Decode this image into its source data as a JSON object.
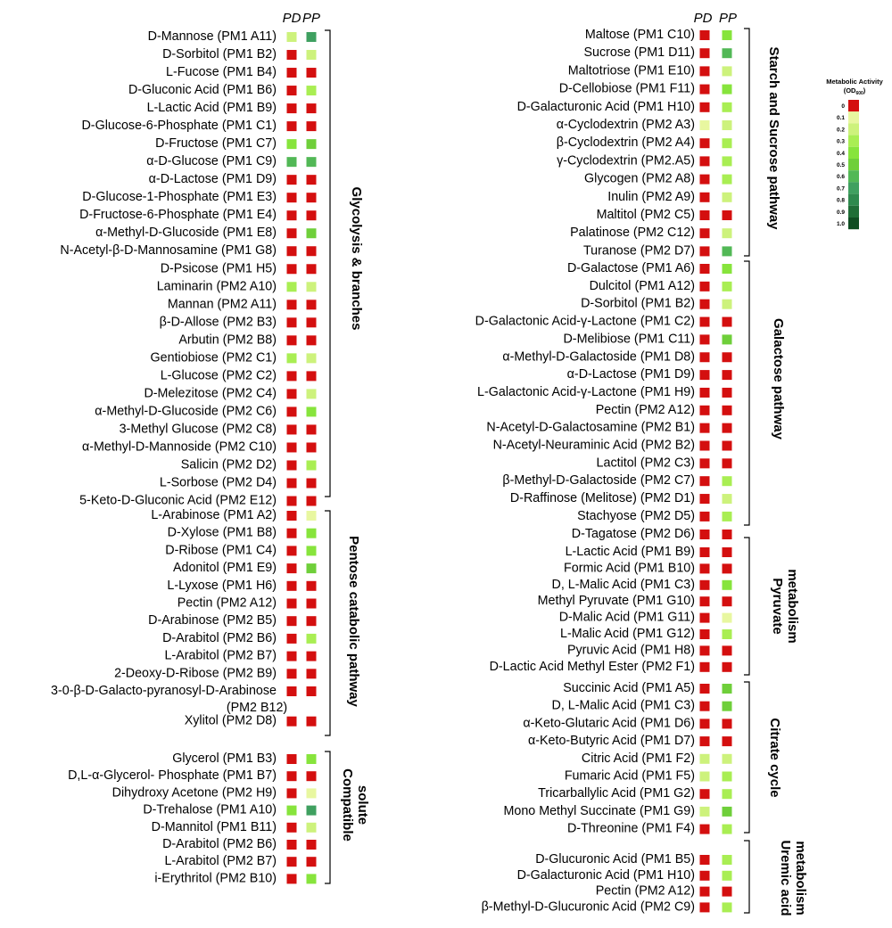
{
  "chart_data": {
    "type": "heatmap",
    "columns": [
      "PD",
      "PP"
    ],
    "scale": {
      "title": "Metabolic Activity",
      "unit_base": "(OD",
      "unit_sub": "600",
      "unit_end": ")",
      "levels": [
        {
          "value": "0",
          "color": "#d40f0f"
        },
        {
          "value": "0.1",
          "color": "#e8f7a0"
        },
        {
          "value": "0.2",
          "color": "#cdf27c"
        },
        {
          "value": "0.3",
          "color": "#a9ee53"
        },
        {
          "value": "0.4",
          "color": "#87e43c"
        },
        {
          "value": "0.5",
          "color": "#6fcf3a"
        },
        {
          "value": "0.6",
          "color": "#52b856"
        },
        {
          "value": "0.7",
          "color": "#3fa060"
        },
        {
          "value": "0.8",
          "color": "#2e8a4e"
        },
        {
          "value": "0.9",
          "color": "#1f6e37"
        },
        {
          "value": "1.0",
          "color": "#0f4d22"
        }
      ]
    },
    "panels": [
      {
        "groups": [
          {
            "name": "Glycolysis & branches",
            "rows": [
              {
                "label": "D-Mannose (PM1 A11)",
                "values": [
                  0.25,
                  0.7
                ]
              },
              {
                "label": "D-Sorbitol (PM1 B2)",
                "values": [
                  0,
                  0.25
                ]
              },
              {
                "label": "L-Fucose (PM1 B4)",
                "values": [
                  0,
                  0
                ]
              },
              {
                "label": "D-Gluconic Acid (PM1 B6)",
                "values": [
                  0,
                  0.3
                ]
              },
              {
                "label": "L-Lactic Acid (PM1 B9)",
                "values": [
                  0,
                  0
                ]
              },
              {
                "label": "D-Glucose-6-Phosphate (PM1 C1)",
                "values": [
                  0,
                  0
                ]
              },
              {
                "label": "D-Fructose (PM1 C7)",
                "values": [
                  0.4,
                  0.5
                ]
              },
              {
                "label": "α-D-Glucose (PM1 C9)",
                "values": [
                  0.6,
                  0.6
                ]
              },
              {
                "label": "α-D-Lactose (PM1 D9)",
                "values": [
                  0,
                  0
                ]
              },
              {
                "label": "D-Glucose-1-Phosphate (PM1 E3)",
                "values": [
                  0,
                  0
                ]
              },
              {
                "label": "D-Fructose-6-Phosphate (PM1 E4)",
                "values": [
                  0,
                  0
                ]
              },
              {
                "label": "α-Methyl-D-Glucoside (PM1 E8)",
                "values": [
                  0,
                  0.5
                ]
              },
              {
                "label": "N-Acetyl-β-D-Mannosamine (PM1 G8)",
                "values": [
                  0,
                  0
                ]
              },
              {
                "label": "D-Psicose (PM1 H5)",
                "values": [
                  0,
                  0
                ]
              },
              {
                "label": "Laminarin (PM2 A10)",
                "values": [
                  0.3,
                  0.25
                ]
              },
              {
                "label": "Mannan (PM2 A11)",
                "values": [
                  0,
                  0
                ]
              },
              {
                "label": "β-D-Allose (PM2 B3)",
                "values": [
                  0,
                  0
                ]
              },
              {
                "label": "Arbutin (PM2 B8)",
                "values": [
                  0,
                  0
                ]
              },
              {
                "label": "Gentiobiose (PM2 C1)",
                "values": [
                  0.3,
                  0.25
                ]
              },
              {
                "label": "L-Glucose (PM2 C2)",
                "values": [
                  0,
                  0
                ]
              },
              {
                "label": "D-Melezitose (PM2 C4)",
                "values": [
                  0,
                  0.25
                ]
              },
              {
                "label": "α-Methyl-D-Glucoside (PM2 C6)",
                "values": [
                  0,
                  0.4
                ]
              },
              {
                "label": "3-Methyl Glucose (PM2 C8)",
                "values": [
                  0,
                  0
                ]
              },
              {
                "label": "α-Methyl-D-Mannoside (PM2 C10)",
                "values": [
                  0,
                  0
                ]
              },
              {
                "label": "Salicin (PM2 D2)",
                "values": [
                  0,
                  0.3
                ]
              },
              {
                "label": "L-Sorbose (PM2 D4)",
                "values": [
                  0,
                  0
                ]
              },
              {
                "label": "5-Keto-D-Gluconic Acid (PM2 E12)",
                "values": [
                  0,
                  0
                ]
              }
            ]
          },
          {
            "name": "Pentose catabolic pathway",
            "rows": [
              {
                "label": "L-Arabinose (PM1 A2)",
                "values": [
                  0,
                  0.1
                ]
              },
              {
                "label": "D-Xylose (PM1 B8)",
                "values": [
                  0,
                  0.4
                ]
              },
              {
                "label": "D-Ribose (PM1 C4)",
                "values": [
                  0,
                  0.4
                ]
              },
              {
                "label": "Adonitol (PM1 E9)",
                "values": [
                  0,
                  0.5
                ]
              },
              {
                "label": "L-Lyxose (PM1 H6)",
                "values": [
                  0,
                  0
                ]
              },
              {
                "label": "Pectin (PM2 A12)",
                "values": [
                  0,
                  0
                ]
              },
              {
                "label": "D-Arabinose (PM2 B5)",
                "values": [
                  0,
                  0
                ]
              },
              {
                "label": "D-Arabitol (PM2 B6)",
                "values": [
                  0,
                  0.3
                ]
              },
              {
                "label": "L-Arabitol (PM2 B7)",
                "values": [
                  0,
                  0
                ]
              },
              {
                "label": "2-Deoxy-D-Ribose (PM2 B9)",
                "values": [
                  0,
                  0
                ]
              },
              {
                "label": "3-0-β-D-Galacto-pyranosyl-D-Arabinose",
                "label2": "(PM2 B12)",
                "values": [
                  0,
                  0
                ]
              },
              {
                "label": "Xylitol (PM2 D8)",
                "values": [
                  0,
                  0
                ]
              }
            ]
          },
          {
            "name": "Compatible solute",
            "rows": [
              {
                "label": "Glycerol (PM1 B3)",
                "values": [
                  0,
                  0.4
                ]
              },
              {
                "label": "D,L-α-Glycerol- Phosphate (PM1 B7)",
                "values": [
                  0,
                  0
                ]
              },
              {
                "label": "Dihydroxy Acetone (PM2 H9)",
                "values": [
                  0,
                  0.1
                ]
              },
              {
                "label": "D-Trehalose (PM1 A10)",
                "values": [
                  0.45,
                  0.65
                ]
              },
              {
                "label": "D-Mannitol (PM1 B11)",
                "values": [
                  0,
                  0.25
                ]
              },
              {
                "label": "D-Arabitol (PM2 B6)",
                "values": [
                  0,
                  0
                ]
              },
              {
                "label": "L-Arabitol (PM2 B7)",
                "values": [
                  0,
                  0
                ]
              },
              {
                "label": "i-Erythritol (PM2 B10)",
                "values": [
                  0,
                  0.4
                ]
              }
            ]
          }
        ]
      },
      {
        "groups": [
          {
            "name": "Starch and Sucrose pathway",
            "rows": [
              {
                "label": "Maltose (PM1 C10)",
                "values": [
                  0,
                  0.45
                ]
              },
              {
                "label": "Sucrose (PM1 D11)",
                "values": [
                  0,
                  0.6
                ]
              },
              {
                "label": "Maltotriose (PM1 E10)",
                "values": [
                  0,
                  0.25
                ]
              },
              {
                "label": "D-Cellobiose (PM1 F11)",
                "values": [
                  0,
                  0.45
                ]
              },
              {
                "label": "D-Galacturonic Acid (PM1 H10)",
                "values": [
                  0,
                  0.35
                ]
              },
              {
                "label": "α-Cyclodextrin (PM2 A3)",
                "values": [
                  0.1,
                  0.2
                ]
              },
              {
                "label": "β-Cyclodextrin (PM2 A4)",
                "values": [
                  0,
                  0.3
                ]
              },
              {
                "label": "γ-Cyclodextrin (PM2.A5)",
                "values": [
                  0,
                  0.3
                ]
              },
              {
                "label": "Glycogen (PM2 A8)",
                "values": [
                  0,
                  0.3
                ]
              },
              {
                "label": "Inulin (PM2 A9)",
                "values": [
                  0,
                  0.25
                ]
              },
              {
                "label": "Maltitol (PM2 C5)",
                "values": [
                  0,
                  0
                ]
              },
              {
                "label": "Palatinose (PM2 C12)",
                "values": [
                  0,
                  0.25
                ]
              },
              {
                "label": "Turanose (PM2 D7)",
                "values": [
                  0,
                  0.6
                ]
              }
            ]
          },
          {
            "name": "Galactose pathway",
            "rows": [
              {
                "label": "D-Galactose (PM1 A6)",
                "values": [
                  0,
                  0.4
                ]
              },
              {
                "label": "Dulcitol (PM1 A12)",
                "values": [
                  0,
                  0.3
                ]
              },
              {
                "label": "D-Sorbitol (PM1 B2)",
                "values": [
                  0,
                  0.25
                ]
              },
              {
                "label": "D-Galactonic Acid-γ-Lactone (PM1 C2)",
                "values": [
                  0,
                  0
                ]
              },
              {
                "label": "D-Melibiose (PM1 C11)",
                "values": [
                  0,
                  0.5
                ]
              },
              {
                "label": "α-Methyl-D-Galactoside (PM1 D8)",
                "values": [
                  0,
                  0
                ]
              },
              {
                "label": "α-D-Lactose (PM1 D9)",
                "values": [
                  0,
                  0
                ]
              },
              {
                "label": "L-Galactonic Acid-γ-Lactone (PM1 H9)",
                "values": [
                  0,
                  0
                ]
              },
              {
                "label": "Pectin (PM2 A12)",
                "values": [
                  0,
                  0
                ]
              },
              {
                "label": "N-Acetyl-D-Galactosamine (PM2 B1)",
                "values": [
                  0,
                  0
                ]
              },
              {
                "label": "N-Acetyl-Neuraminic Acid (PM2 B2)",
                "values": [
                  0,
                  0
                ]
              },
              {
                "label": "Lactitol (PM2 C3)",
                "values": [
                  0,
                  0
                ]
              },
              {
                "label": "β-Methyl-D-Galactoside (PM2 C7)",
                "values": [
                  0,
                  0.3
                ]
              },
              {
                "label": "D-Raffinose (Melitose) (PM2 D1)",
                "values": [
                  0,
                  0.25
                ]
              },
              {
                "label": "Stachyose (PM2 D5)",
                "values": [
                  0,
                  0.3
                ]
              }
            ]
          },
          {
            "name": "D-Tagatose (PM2 D6)",
            "standalone": true,
            "rows": [
              {
                "label": "D-Tagatose (PM2 D6)",
                "values": [
                  0,
                  0
                ]
              }
            ]
          },
          {
            "name": "Pyruvate metabolism",
            "rows": [
              {
                "label": "L-Lactic Acid (PM1 B9)",
                "values": [
                  0,
                  0
                ]
              },
              {
                "label": "Formic Acid (PM1 B10)",
                "values": [
                  0,
                  0
                ]
              },
              {
                "label": "D, L-Malic Acid (PM1 C3)",
                "values": [
                  0,
                  0.4
                ]
              },
              {
                "label": "Methyl Pyruvate (PM1 G10)",
                "values": [
                  0,
                  0
                ]
              },
              {
                "label": "D-Malic Acid (PM1 G11)",
                "values": [
                  0,
                  0.1
                ]
              },
              {
                "label": "L-Malic Acid (PM1 G12)",
                "values": [
                  0,
                  0.3
                ]
              },
              {
                "label": "Pyruvic Acid (PM1 H8)",
                "values": [
                  0,
                  0
                ]
              },
              {
                "label": "D-Lactic Acid Methyl Ester (PM2 F1)",
                "values": [
                  0,
                  0
                ]
              }
            ]
          },
          {
            "name": "Citrate cycle",
            "rows": [
              {
                "label": "Succinic Acid (PM1 A5)",
                "values": [
                  0,
                  0.5
                ]
              },
              {
                "label": "D, L-Malic Acid (PM1 C3)",
                "values": [
                  0,
                  0.5
                ]
              },
              {
                "label": "α-Keto-Glutaric Acid (PM1 D6)",
                "values": [
                  0,
                  0
                ]
              },
              {
                "label": "α-Keto-Butyric Acid (PM1 D7)",
                "values": [
                  0,
                  0
                ]
              },
              {
                "label": "Citric Acid (PM1 F2)",
                "values": [
                  0.2,
                  0.2
                ]
              },
              {
                "label": "Fumaric Acid (PM1 F5)",
                "values": [
                  0.2,
                  0.3
                ]
              },
              {
                "label": "Tricarballylic Acid (PM1 G2)",
                "values": [
                  0,
                  0.3
                ]
              },
              {
                "label": "Mono Methyl Succinate (PM1 G9)",
                "values": [
                  0.2,
                  0.5
                ]
              },
              {
                "label": "D-Threonine (PM1 F4)",
                "values": [
                  0,
                  0.3
                ]
              }
            ]
          },
          {
            "name": "Uremic acid metabolism",
            "rows": [
              {
                "label": "D-Glucuronic Acid (PM1 B5)",
                "values": [
                  0,
                  0.3
                ]
              },
              {
                "label": "D-Galacturonic Acid (PM1 H10)",
                "values": [
                  0,
                  0.3
                ]
              },
              {
                "label": "Pectin (PM2 A12)",
                "values": [
                  0,
                  0
                ]
              },
              {
                "label": "β-Methyl-D-Glucuronic Acid (PM2 C9)",
                "values": [
                  0,
                  0.3
                ]
              }
            ]
          }
        ]
      }
    ]
  }
}
